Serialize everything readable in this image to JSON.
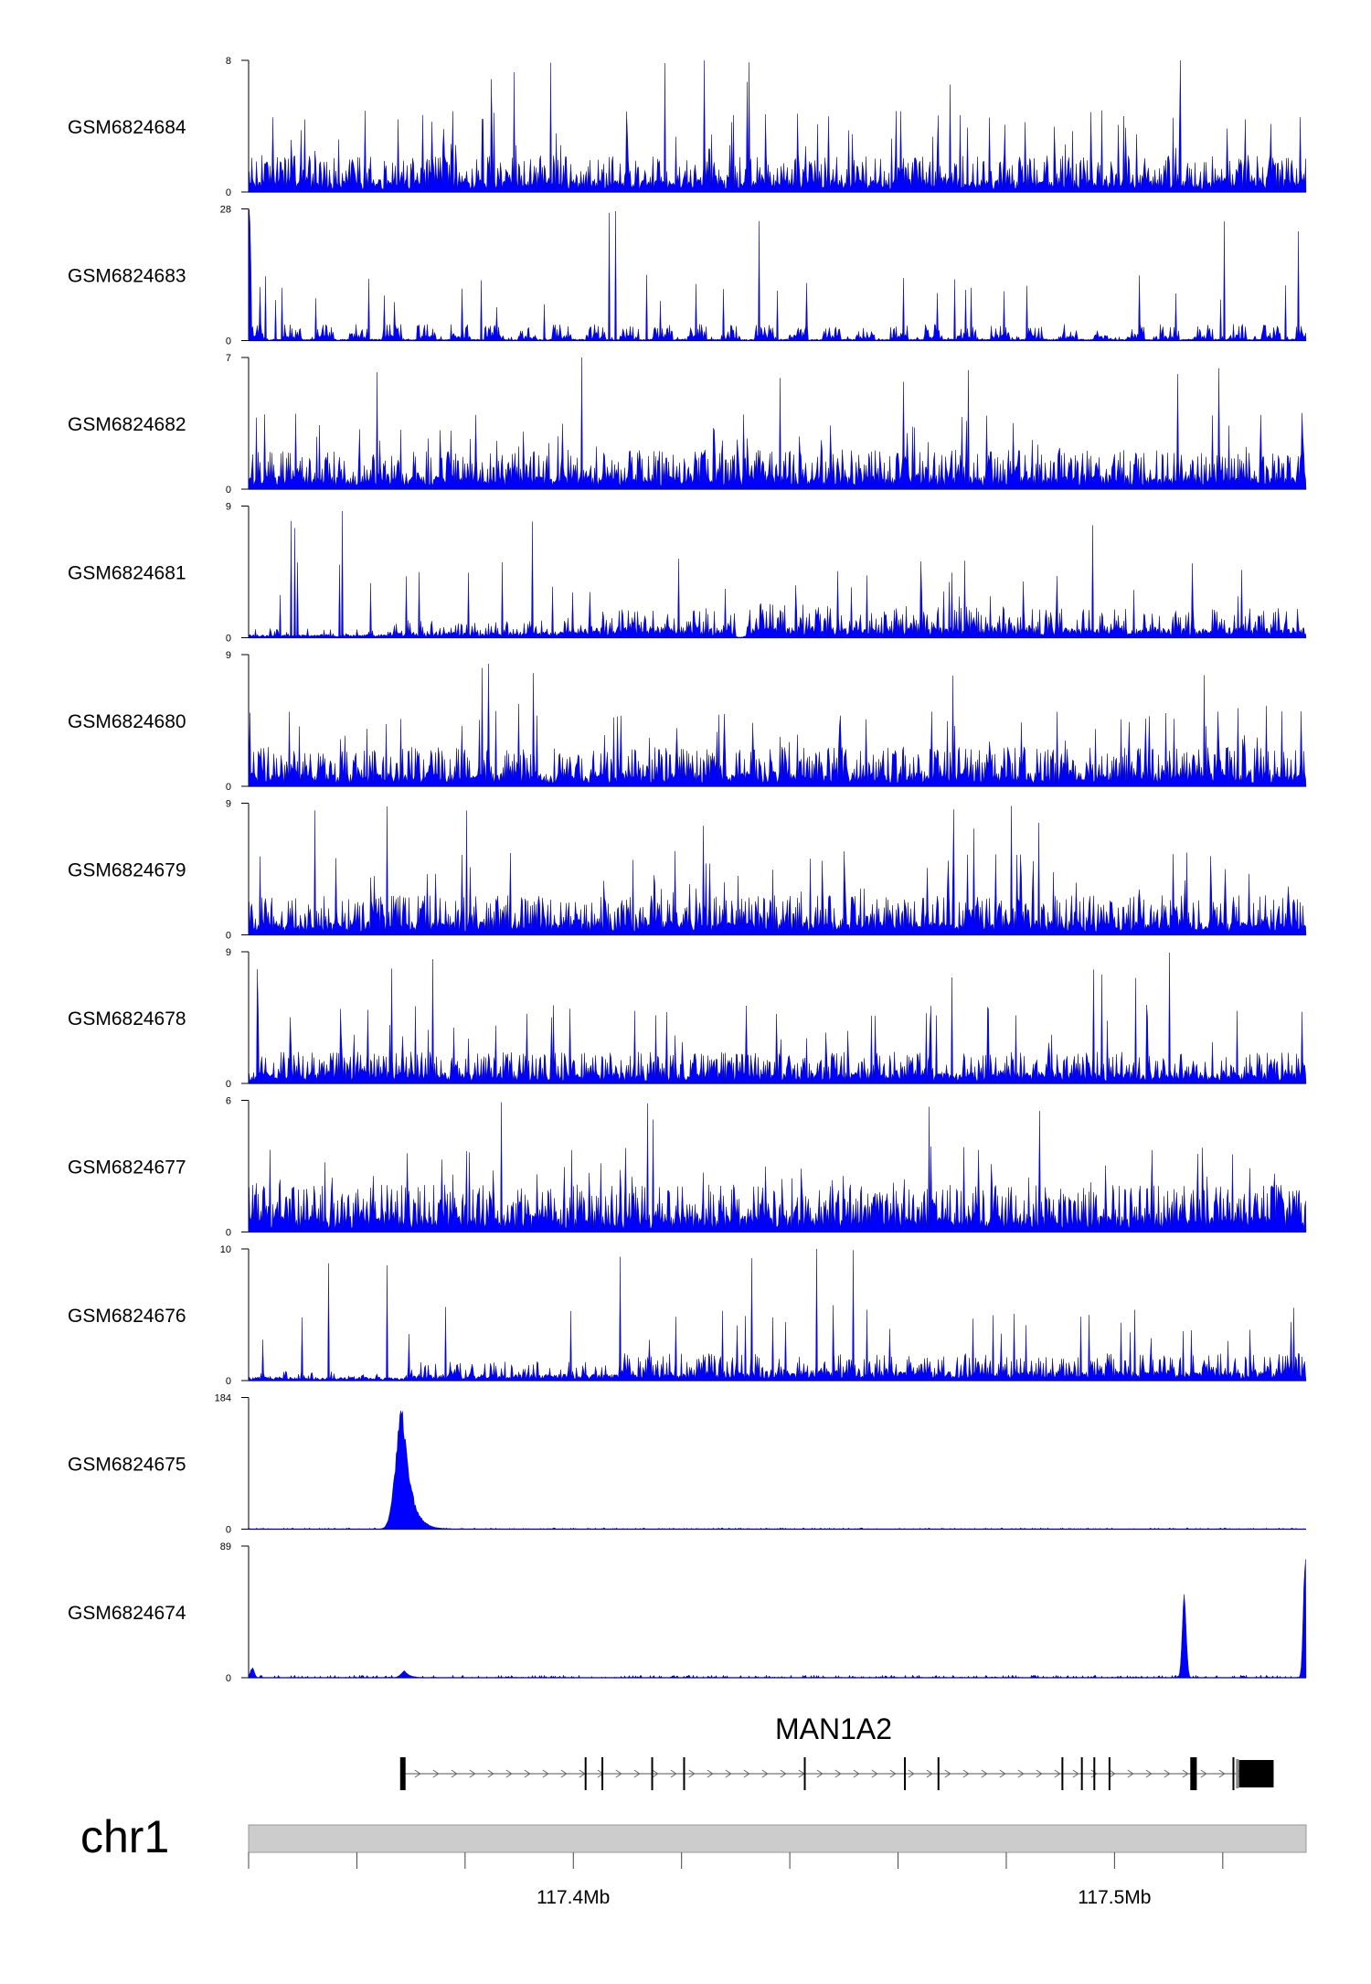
{
  "chart_data": {
    "type": "area",
    "title": "",
    "series_color": "#0000FF",
    "outline_color": "#000080",
    "x_range": [
      117.34,
      117.5354
    ],
    "x_unit": "Mb",
    "tracks": [
      {
        "name": "GSM6824684",
        "ymin": "0",
        "ymax": "8",
        "max": 8,
        "pattern": "noise",
        "level": 0.28,
        "peak_share": 0.62
      },
      {
        "name": "GSM6824683",
        "ymin": "0",
        "ymax": "28",
        "max": 28,
        "pattern": "sparse",
        "level": 0.14,
        "peak_share": 0.5
      },
      {
        "name": "GSM6824682",
        "ymin": "0",
        "ymax": "7",
        "max": 7,
        "pattern": "noise",
        "level": 0.3,
        "peak_share": 0.58
      },
      {
        "name": "GSM6824681",
        "ymin": "0",
        "ymax": "9",
        "max": 9,
        "pattern": "broad",
        "level": 0.3,
        "peak_share": 0.6
      },
      {
        "name": "GSM6824680",
        "ymin": "0",
        "ymax": "9",
        "max": 9,
        "pattern": "noise",
        "level": 0.3,
        "peak_share": 0.64
      },
      {
        "name": "GSM6824679",
        "ymin": "0",
        "ymax": "9",
        "max": 9,
        "pattern": "noise",
        "level": 0.3,
        "peak_share": 0.64
      },
      {
        "name": "GSM6824678",
        "ymin": "0",
        "ymax": "9",
        "max": 9,
        "pattern": "noise",
        "level": 0.24,
        "peak_share": 0.6
      },
      {
        "name": "GSM6824677",
        "ymin": "0",
        "ymax": "6",
        "max": 6,
        "pattern": "noise",
        "level": 0.36,
        "peak_share": 0.66
      },
      {
        "name": "GSM6824676",
        "ymin": "0",
        "ymax": "10",
        "max": 10,
        "pattern": "broad2",
        "level": 0.26,
        "peak_share": 0.58
      },
      {
        "name": "GSM6824675",
        "ymin": "0",
        "ymax": "184",
        "max": 184,
        "pattern": "peak",
        "level": 0.01,
        "peaks": [
          {
            "pos": 117.3684,
            "value": 184,
            "width": 0.0013
          }
        ]
      },
      {
        "name": "GSM6824674",
        "ymin": "0",
        "ymax": "89",
        "max": 89,
        "pattern": "peak",
        "level": 0.02,
        "peaks": [
          {
            "pos": 117.5128,
            "value": 60,
            "width": 0.0004
          },
          {
            "pos": 117.5352,
            "value": 89,
            "width": 0.0004
          },
          {
            "pos": 117.3688,
            "value": 5,
            "width": 0.0008
          },
          {
            "pos": 117.3406,
            "value": 7,
            "width": 0.0004
          }
        ]
      }
    ],
    "gene": {
      "name": "MAN1A2",
      "strand": "+",
      "start": 117.368,
      "end": 117.5294,
      "exons": [
        [
          117.368,
          117.369
        ],
        [
          117.4021,
          117.4023
        ],
        [
          117.4052,
          117.4054
        ],
        [
          117.4144,
          117.4146
        ],
        [
          117.4203,
          117.4205
        ],
        [
          117.4426,
          117.4428
        ],
        [
          117.4611,
          117.4613
        ],
        [
          117.4673,
          117.4675
        ],
        [
          117.4902,
          117.4904
        ],
        [
          117.4938,
          117.494
        ],
        [
          117.4961,
          117.4963
        ],
        [
          117.4989,
          117.4991
        ],
        [
          117.514,
          117.5152
        ],
        [
          117.5218,
          117.522
        ],
        [
          117.523,
          117.5294
        ]
      ]
    },
    "chromosome": "chr1",
    "axis_ticks": [
      117.34,
      117.36,
      117.38,
      117.4,
      117.42,
      117.44,
      117.46,
      117.48,
      117.5,
      117.52
    ],
    "axis_tick_labels": [
      {
        "value": 117.4,
        "label": "117.4Mb"
      },
      {
        "value": 117.5,
        "label": "117.5Mb"
      }
    ]
  }
}
